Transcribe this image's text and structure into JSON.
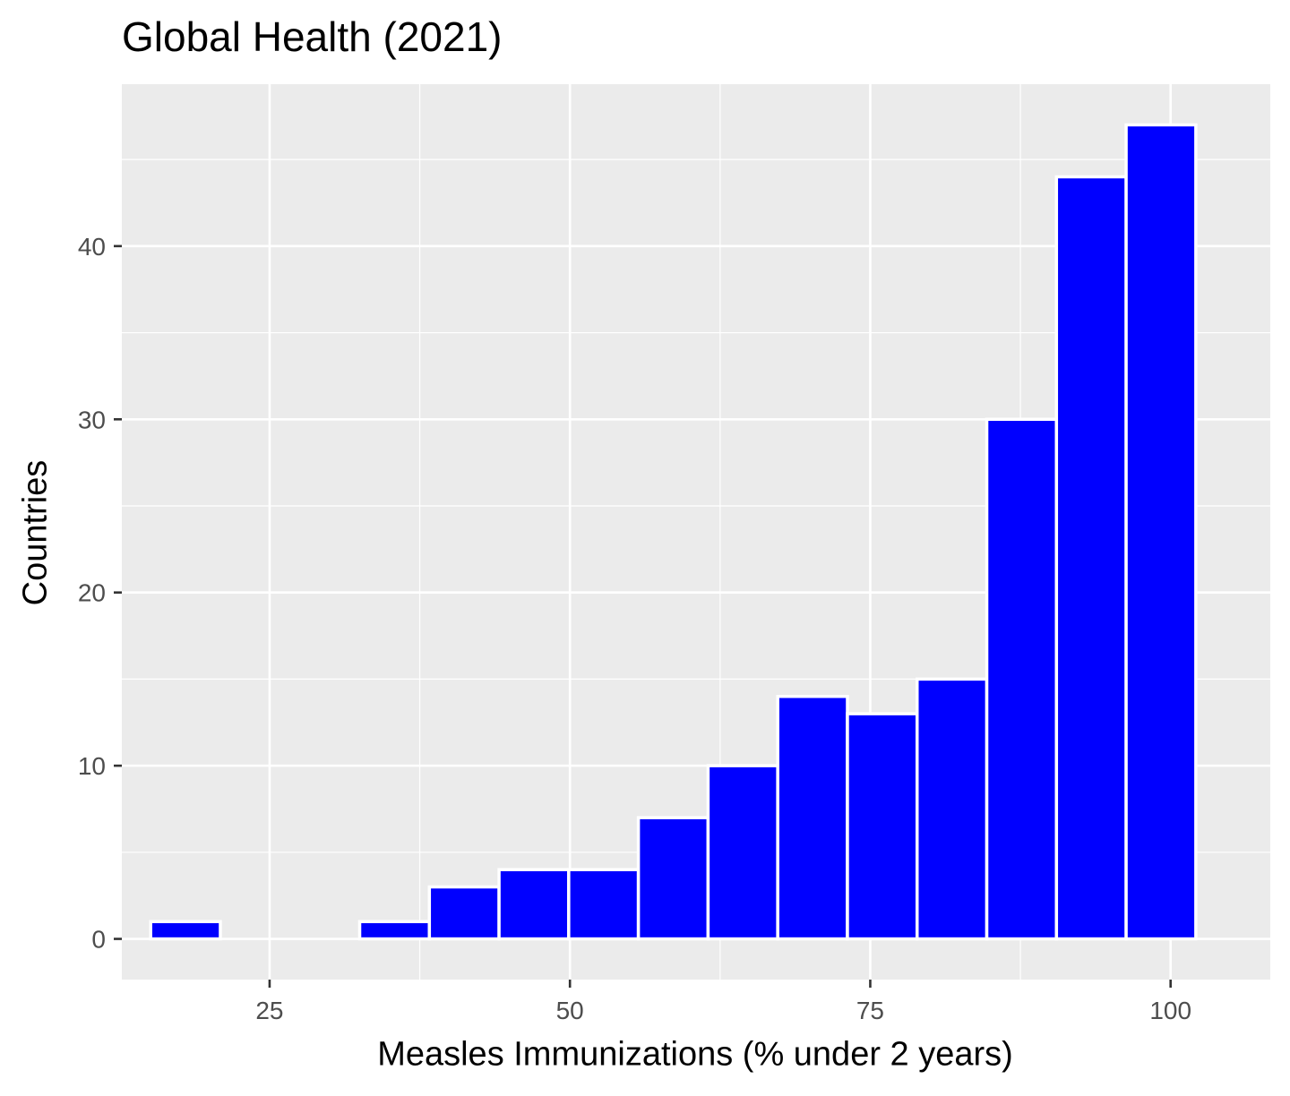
{
  "chart_data": {
    "type": "bar",
    "subtype": "histogram",
    "title": "Global Health (2021)",
    "xlabel": "Measles Immunizations (% under 2 years)",
    "ylabel": "Countries",
    "bins": [
      {
        "start": 15.1,
        "end": 20.9,
        "count": 1
      },
      {
        "start": 20.9,
        "end": 26.7,
        "count": 0
      },
      {
        "start": 26.7,
        "end": 32.5,
        "count": 0
      },
      {
        "start": 32.5,
        "end": 38.3,
        "count": 1
      },
      {
        "start": 38.3,
        "end": 44.1,
        "count": 3
      },
      {
        "start": 44.1,
        "end": 49.9,
        "count": 4
      },
      {
        "start": 49.9,
        "end": 55.7,
        "count": 4
      },
      {
        "start": 55.7,
        "end": 61.5,
        "count": 7
      },
      {
        "start": 61.5,
        "end": 67.3,
        "count": 10
      },
      {
        "start": 67.3,
        "end": 73.1,
        "count": 14
      },
      {
        "start": 73.1,
        "end": 78.9,
        "count": 13
      },
      {
        "start": 78.9,
        "end": 84.7,
        "count": 15
      },
      {
        "start": 84.7,
        "end": 90.5,
        "count": 30
      },
      {
        "start": 90.5,
        "end": 96.3,
        "count": 44
      },
      {
        "start": 96.3,
        "end": 102.1,
        "count": 47
      }
    ],
    "xlim": [
      12.7,
      108.3
    ],
    "ylim": [
      -2.35,
      49.35
    ],
    "x_ticks": [
      25,
      50,
      75,
      100
    ],
    "y_ticks": [
      0,
      10,
      20,
      30,
      40
    ],
    "grid": true,
    "colors": {
      "bar_fill": "#0000ff",
      "bar_outline": "#ffffff",
      "panel_background": "#ebebeb",
      "grid_major": "#ffffff",
      "grid_minor": "#ffffff",
      "tick_label": "#4d4d4d",
      "tick_mark": "#333333"
    }
  }
}
